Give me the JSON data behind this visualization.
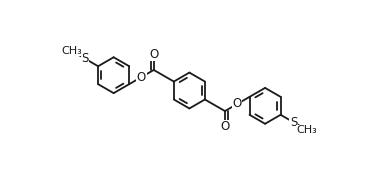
{
  "bg_color": "#ffffff",
  "line_color": "#1a1a1a",
  "line_width": 1.3,
  "font_size": 8.5,
  "fig_width": 3.75,
  "fig_height": 1.9,
  "dpi": 100,
  "xlim": [
    0,
    10
  ],
  "ylim": [
    0,
    5
  ]
}
